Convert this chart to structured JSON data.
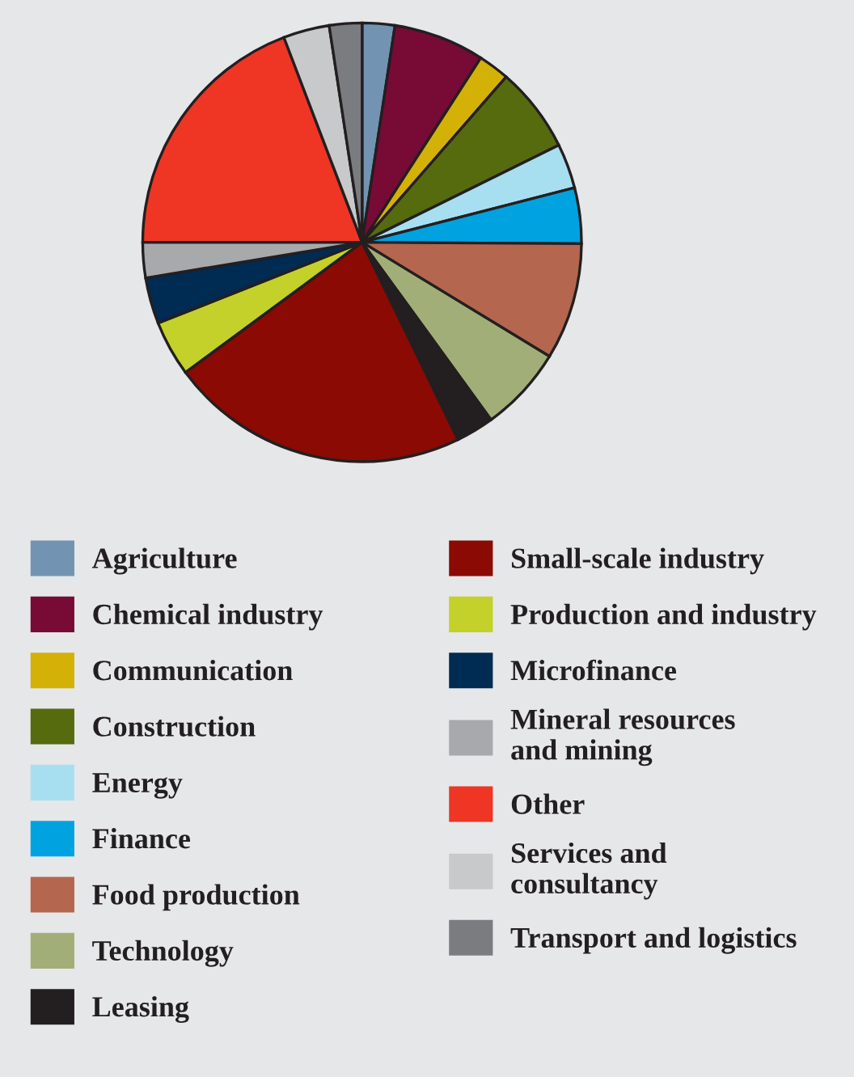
{
  "chart_data": {
    "type": "pie",
    "categories": [
      "Agriculture",
      "Chemical industry",
      "Communication",
      "Construction",
      "Energy",
      "Finance",
      "Food production",
      "Technology",
      "Leasing",
      "Small-scale industry",
      "Production and industry",
      "Microfinance",
      "Mineral resources and mining",
      "Other",
      "Services and consultancy",
      "Transport and logistics"
    ],
    "values": [
      2.4,
      6.7,
      2.3,
      6.3,
      3.3,
      4.1,
      8.6,
      6.3,
      2.8,
      22.1,
      4.1,
      3.4,
      2.6,
      19.2,
      3.4,
      2.4
    ],
    "colors": [
      "#7393b3",
      "#780a36",
      "#d4b106",
      "#566b0e",
      "#a8dff0",
      "#00a3e0",
      "#b5664e",
      "#a2ae78",
      "#231f20",
      "#8b0a03",
      "#c3d12a",
      "#002b52",
      "#a7a9ac",
      "#ef3524",
      "#c8c9cb",
      "#7b7c7f"
    ],
    "legend": "bottom"
  }
}
